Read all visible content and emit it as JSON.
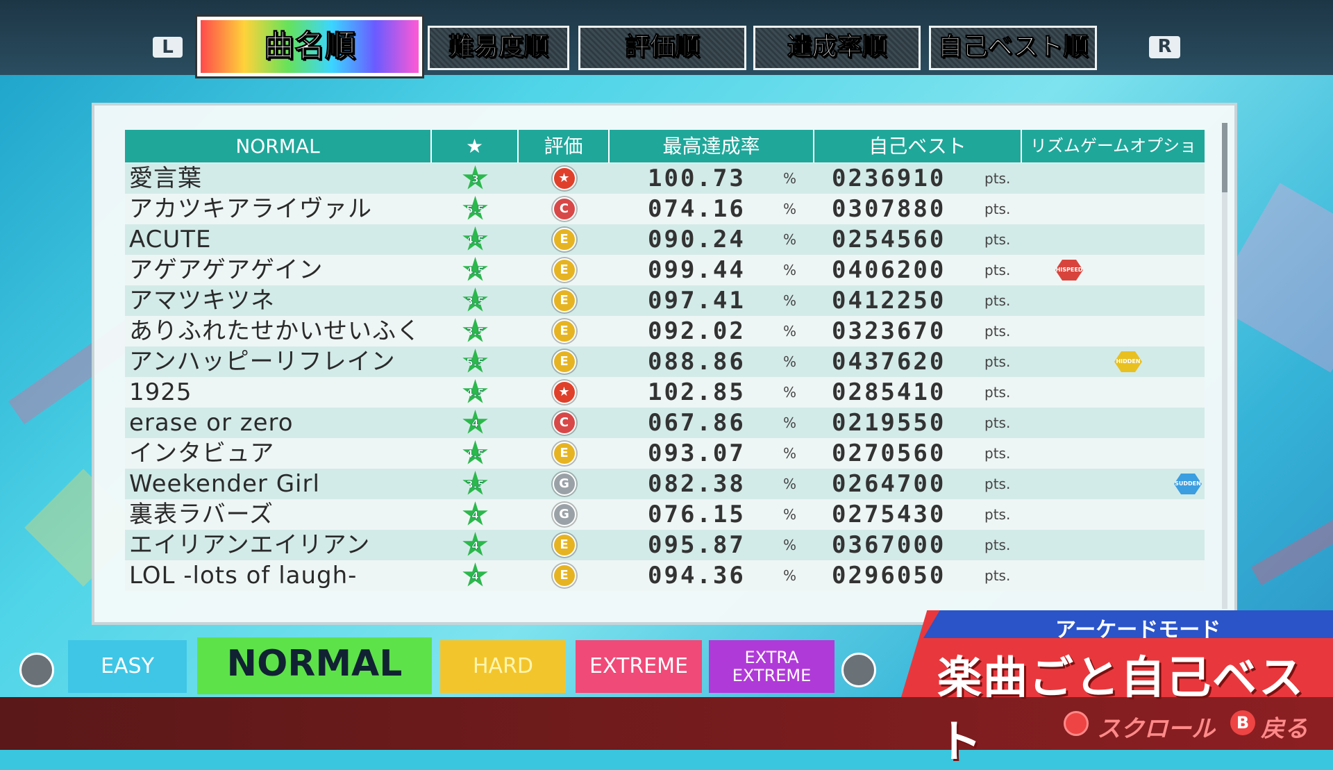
{
  "top_tabs": {
    "left_button": "L",
    "right_button": "R",
    "tabs": [
      "曲名順",
      "難易度順",
      "評価順",
      "達成率順",
      "自己ベスト順"
    ]
  },
  "table": {
    "headers": [
      "NORMAL",
      "★",
      "評価",
      "最高達成率",
      "自己ベスト",
      "リズムゲームオプション"
    ],
    "rate_unit": "%",
    "score_unit": "pts.",
    "rows": [
      {
        "title": "愛言葉",
        "level": "3",
        "rating": {
          "label": "★",
          "color": "#e0402a"
        },
        "rate": "100.73",
        "score": "0236910"
      },
      {
        "title": "アカツキアライヴァル",
        "level": "5.5",
        "rating": {
          "label": "C",
          "color": "#d84848"
        },
        "rate": "074.16",
        "score": "0307880"
      },
      {
        "title": "ACUTE",
        "level": "4.5",
        "rating": {
          "label": "E",
          "color": "#e6b422"
        },
        "rate": "090.24",
        "score": "0254560"
      },
      {
        "title": "アゲアゲアゲイン",
        "level": "4.5",
        "rating": {
          "label": "E",
          "color": "#e6b422"
        },
        "rate": "099.44",
        "score": "0406200",
        "option": {
          "label": "HISPEED",
          "color": "#d8443c"
        }
      },
      {
        "title": "アマツキツネ",
        "level": "3.5",
        "rating": {
          "label": "E",
          "color": "#e6b422"
        },
        "rate": "097.41",
        "score": "0412250"
      },
      {
        "title": "ありふれたせかいせいふく",
        "level": "3.5",
        "rating": {
          "label": "E",
          "color": "#e6b422"
        },
        "rate": "092.02",
        "score": "0323670"
      },
      {
        "title": "アンハッピーリフレイン",
        "level": "5.5",
        "rating": {
          "label": "E",
          "color": "#e6b422"
        },
        "rate": "088.86",
        "score": "0437620",
        "option": {
          "label": "HIDDEN",
          "color": "#e8c020"
        }
      },
      {
        "title": "1925",
        "level": "4.5",
        "rating": {
          "label": "★",
          "color": "#e0402a"
        },
        "rate": "102.85",
        "score": "0285410"
      },
      {
        "title": "erase or zero",
        "level": "4",
        "rating": {
          "label": "C",
          "color": "#d84848"
        },
        "rate": "067.86",
        "score": "0219550"
      },
      {
        "title": "インタビュア",
        "level": "4.5",
        "rating": {
          "label": "E",
          "color": "#e6b422"
        },
        "rate": "093.07",
        "score": "0270560"
      },
      {
        "title": "Weekender Girl",
        "level": "3.5",
        "rating": {
          "label": "G",
          "color": "#9aa2a8"
        },
        "rate": "082.38",
        "score": "0264700",
        "option": {
          "label": "SUDDEN",
          "color": "#3a9ee0"
        }
      },
      {
        "title": "裏表ラバーズ",
        "level": "4",
        "rating": {
          "label": "G",
          "color": "#9aa2a8"
        },
        "rate": "076.15",
        "score": "0275430"
      },
      {
        "title": "エイリアンエイリアン",
        "level": "4",
        "rating": {
          "label": "E",
          "color": "#e6b422"
        },
        "rate": "095.87",
        "score": "0367000"
      },
      {
        "title": "LOL -lots of laugh-",
        "level": "4",
        "rating": {
          "label": "E",
          "color": "#e6b422"
        },
        "rate": "094.36",
        "score": "0296050"
      }
    ]
  },
  "difficulty_tabs": [
    "EASY",
    "NORMAL",
    "HARD",
    "EXTREME",
    "EXTRA EXTREME"
  ],
  "banner": {
    "mode": "アーケードモード",
    "title": "楽曲ごと自己ベスト"
  },
  "controls": {
    "scroll": "スクロール",
    "back_button": "B",
    "back": "戻る"
  }
}
